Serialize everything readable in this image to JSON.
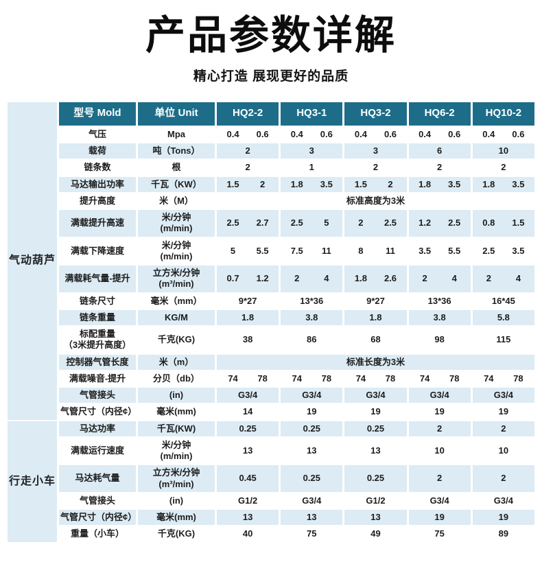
{
  "page": {
    "title": "产品参数详解",
    "subtitle": "精心打造 展现更好的品质"
  },
  "colors": {
    "header_bg": "#1d6d89",
    "header_text": "#ffffff",
    "row_alt_bg": "#dcebf4",
    "row_bg": "#ffffff",
    "sidebar_bg": "#dcebf4",
    "title_text": "#0d0d0d"
  },
  "table": {
    "headers": [
      "型号 Mold",
      "单位 Unit",
      "HQ2-2",
      "HQ3-1",
      "HQ3-2",
      "HQ6-2",
      "HQ10-2"
    ],
    "groups": [
      {
        "label": "气动葫芦",
        "rows": [
          {
            "param": "气压",
            "unit": "Mpa",
            "type": "pair",
            "values": [
              [
                "0.4",
                "0.6"
              ],
              [
                "0.4",
                "0.6"
              ],
              [
                "0.4",
                "0.6"
              ],
              [
                "0.4",
                "0.6"
              ],
              [
                "0.4",
                "0.6"
              ]
            ]
          },
          {
            "param": "载荷",
            "unit": "吨（Tons）",
            "type": "single",
            "values": [
              "2",
              "3",
              "3",
              "6",
              "10"
            ]
          },
          {
            "param": "链条数",
            "unit": "根",
            "type": "single",
            "values": [
              "2",
              "1",
              "2",
              "2",
              "2"
            ]
          },
          {
            "param": "马达输出功率",
            "unit": "千瓦（KW）",
            "type": "pair",
            "values": [
              [
                "1.5",
                "2"
              ],
              [
                "1.8",
                "3.5"
              ],
              [
                "1.5",
                "2"
              ],
              [
                "1.8",
                "3.5"
              ],
              [
                "1.8",
                "3.5"
              ]
            ]
          },
          {
            "param": "提升高度",
            "unit": "米（M）",
            "type": "span",
            "values": [
              "标准高度为3米"
            ]
          },
          {
            "param": "满载提升高速",
            "unit": "米/分钟\n(m/min)",
            "type": "pair",
            "values": [
              [
                "2.5",
                "2.7"
              ],
              [
                "2.5",
                "5"
              ],
              [
                "2",
                "2.5"
              ],
              [
                "1.2",
                "2.5"
              ],
              [
                "0.8",
                "1.5"
              ]
            ]
          },
          {
            "param": "满载下降速度",
            "unit": "米/分钟\n(m/min)",
            "type": "pair",
            "values": [
              [
                "5",
                "5.5"
              ],
              [
                "7.5",
                "11"
              ],
              [
                "8",
                "11"
              ],
              [
                "3.5",
                "5.5"
              ],
              [
                "2.5",
                "3.5"
              ]
            ]
          },
          {
            "param": "满载耗气量-提升",
            "unit": "立方米/分钟\n(m³/min)",
            "type": "pair",
            "values": [
              [
                "0.7",
                "1.2"
              ],
              [
                "2",
                "4"
              ],
              [
                "1.8",
                "2.6"
              ],
              [
                "2",
                "4"
              ],
              [
                "2",
                "4"
              ]
            ]
          },
          {
            "param": "链条尺寸",
            "unit": "毫米（mm）",
            "type": "single",
            "values": [
              "9*27",
              "13*36",
              "9*27",
              "13*36",
              "16*45"
            ]
          },
          {
            "param": "链条重量",
            "unit": "KG/M",
            "type": "single",
            "values": [
              "1.8",
              "3.8",
              "1.8",
              "3.8",
              "5.8"
            ]
          },
          {
            "param": "标配重量\n（3米提升高度）",
            "unit": "千克(KG)",
            "type": "single",
            "values": [
              "38",
              "86",
              "68",
              "98",
              "115"
            ]
          },
          {
            "param": "控制器气管长度",
            "unit": "米（m）",
            "type": "span",
            "values": [
              "标准长度为3米"
            ]
          },
          {
            "param": "满载噪音-提升",
            "unit": "分贝（db）",
            "type": "pair",
            "values": [
              [
                "74",
                "78"
              ],
              [
                "74",
                "78"
              ],
              [
                "74",
                "78"
              ],
              [
                "74",
                "78"
              ],
              [
                "74",
                "78"
              ]
            ]
          },
          {
            "param": "气管接头",
            "unit": "(in)",
            "type": "single",
            "values": [
              "G3/4",
              "G3/4",
              "G3/4",
              "G3/4",
              "G3/4"
            ]
          },
          {
            "param": "气管尺寸（内径¢）",
            "unit": "毫米(mm)",
            "type": "single",
            "values": [
              "14",
              "19",
              "19",
              "19",
              "19"
            ]
          }
        ]
      },
      {
        "label": "行走小车",
        "rows": [
          {
            "param": "马达功率",
            "unit": "千瓦(KW)",
            "type": "single",
            "values": [
              "0.25",
              "0.25",
              "0.25",
              "2",
              "2"
            ]
          },
          {
            "param": "满载运行速度",
            "unit": "米/分钟\n(m/min)",
            "type": "single",
            "values": [
              "13",
              "13",
              "13",
              "10",
              "10"
            ]
          },
          {
            "param": "马达耗气量",
            "unit": "立方米/分钟\n(m³/min)",
            "type": "single",
            "values": [
              "0.45",
              "0.25",
              "0.25",
              "2",
              "2"
            ]
          },
          {
            "param": "气管接头",
            "unit": "(in)",
            "type": "single",
            "values": [
              "G1/2",
              "G3/4",
              "G1/2",
              "G3/4",
              "G3/4"
            ]
          },
          {
            "param": "气管尺寸（内径¢）",
            "unit": "毫米(mm)",
            "type": "single",
            "values": [
              "13",
              "13",
              "13",
              "19",
              "19"
            ]
          },
          {
            "param": "重量（小车）",
            "unit": "千克(KG)",
            "type": "single",
            "values": [
              "40",
              "75",
              "49",
              "75",
              "89"
            ]
          }
        ]
      }
    ]
  }
}
